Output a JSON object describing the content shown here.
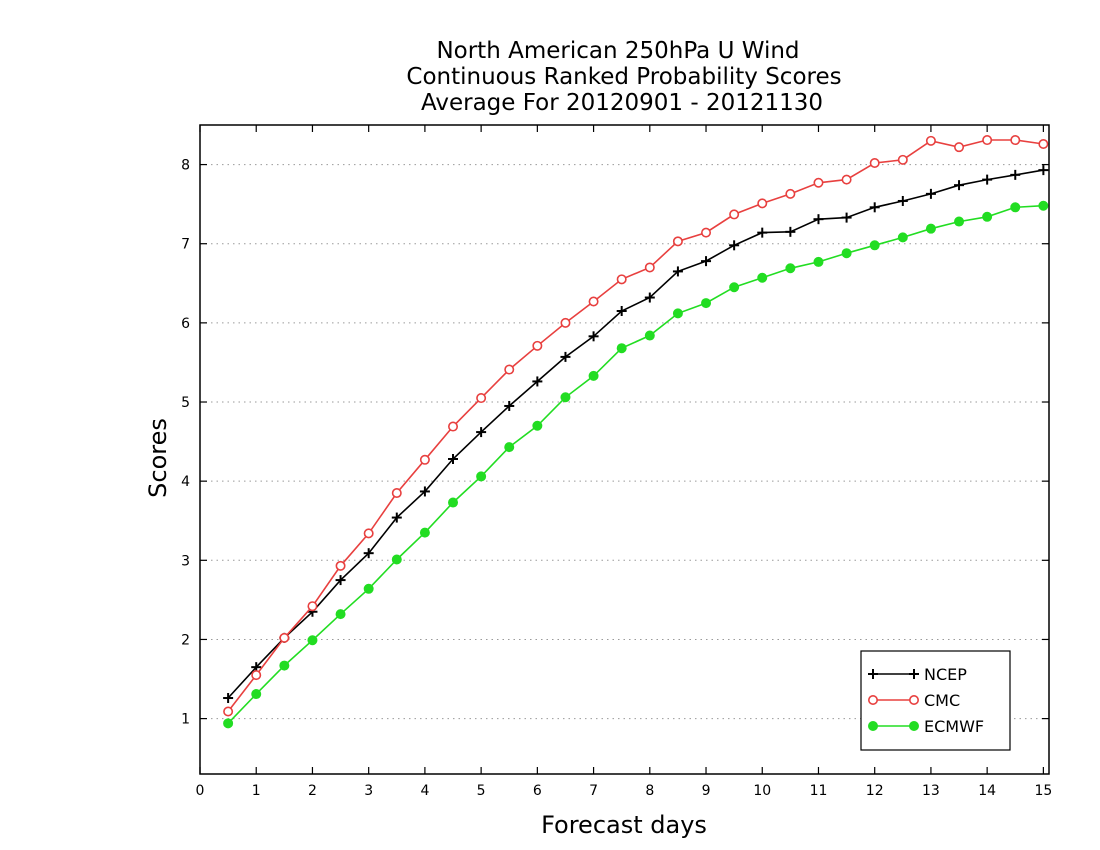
{
  "chart_data": {
    "type": "line",
    "title": [
      "North American 250hPa U Wind",
      "Continuous Ranked Probability Scores",
      "Average For 20120901 - 20121130"
    ],
    "xlabel": "Forecast days",
    "ylabel": "Scores",
    "xlim": [
      0,
      15.1
    ],
    "ylim": [
      0.3,
      8.5
    ],
    "xticks": [
      0,
      1,
      2,
      3,
      4,
      5,
      6,
      7,
      8,
      9,
      10,
      11,
      12,
      13,
      14,
      15
    ],
    "yticks": [
      1,
      2,
      3,
      4,
      5,
      6,
      7,
      8
    ],
    "grid": "horizontal dotted",
    "legend_position": "bottom-right",
    "x": [
      0.5,
      1,
      1.5,
      2,
      2.5,
      3,
      3.5,
      4,
      4.5,
      5,
      5.5,
      6,
      6.5,
      7,
      7.5,
      8,
      8.5,
      9,
      9.5,
      10,
      10.5,
      11,
      11.5,
      12,
      12.5,
      13,
      13.5,
      14,
      14.5,
      15
    ],
    "series": [
      {
        "name": "NCEP",
        "color": "#000000",
        "marker": "plus",
        "values": [
          1.26,
          1.65,
          2.02,
          2.35,
          2.75,
          3.09,
          3.54,
          3.87,
          4.28,
          4.62,
          4.95,
          5.26,
          5.57,
          5.83,
          6.15,
          6.32,
          6.65,
          6.78,
          6.98,
          7.14,
          7.15,
          7.31,
          7.33,
          7.46,
          7.54,
          7.63,
          7.74,
          7.81,
          7.87,
          7.93
        ]
      },
      {
        "name": "CMC",
        "color": "#e8403f",
        "marker": "open-circle",
        "values": [
          1.09,
          1.55,
          2.02,
          2.42,
          2.93,
          3.34,
          3.85,
          4.27,
          4.69,
          5.05,
          5.41,
          5.71,
          6.0,
          6.27,
          6.55,
          6.7,
          7.03,
          7.14,
          7.37,
          7.51,
          7.63,
          7.77,
          7.81,
          8.02,
          8.06,
          8.3,
          8.22,
          8.31,
          8.31,
          8.26
        ]
      },
      {
        "name": "ECMWF",
        "color": "#22dd22",
        "marker": "filled-circle",
        "values": [
          0.94,
          1.31,
          1.67,
          1.99,
          2.32,
          2.64,
          3.01,
          3.35,
          3.73,
          4.06,
          4.43,
          4.7,
          5.06,
          5.33,
          5.68,
          5.84,
          6.12,
          6.25,
          6.45,
          6.57,
          6.69,
          6.77,
          6.88,
          6.98,
          7.08,
          7.19,
          7.28,
          7.34,
          7.46,
          7.48
        ]
      }
    ]
  }
}
